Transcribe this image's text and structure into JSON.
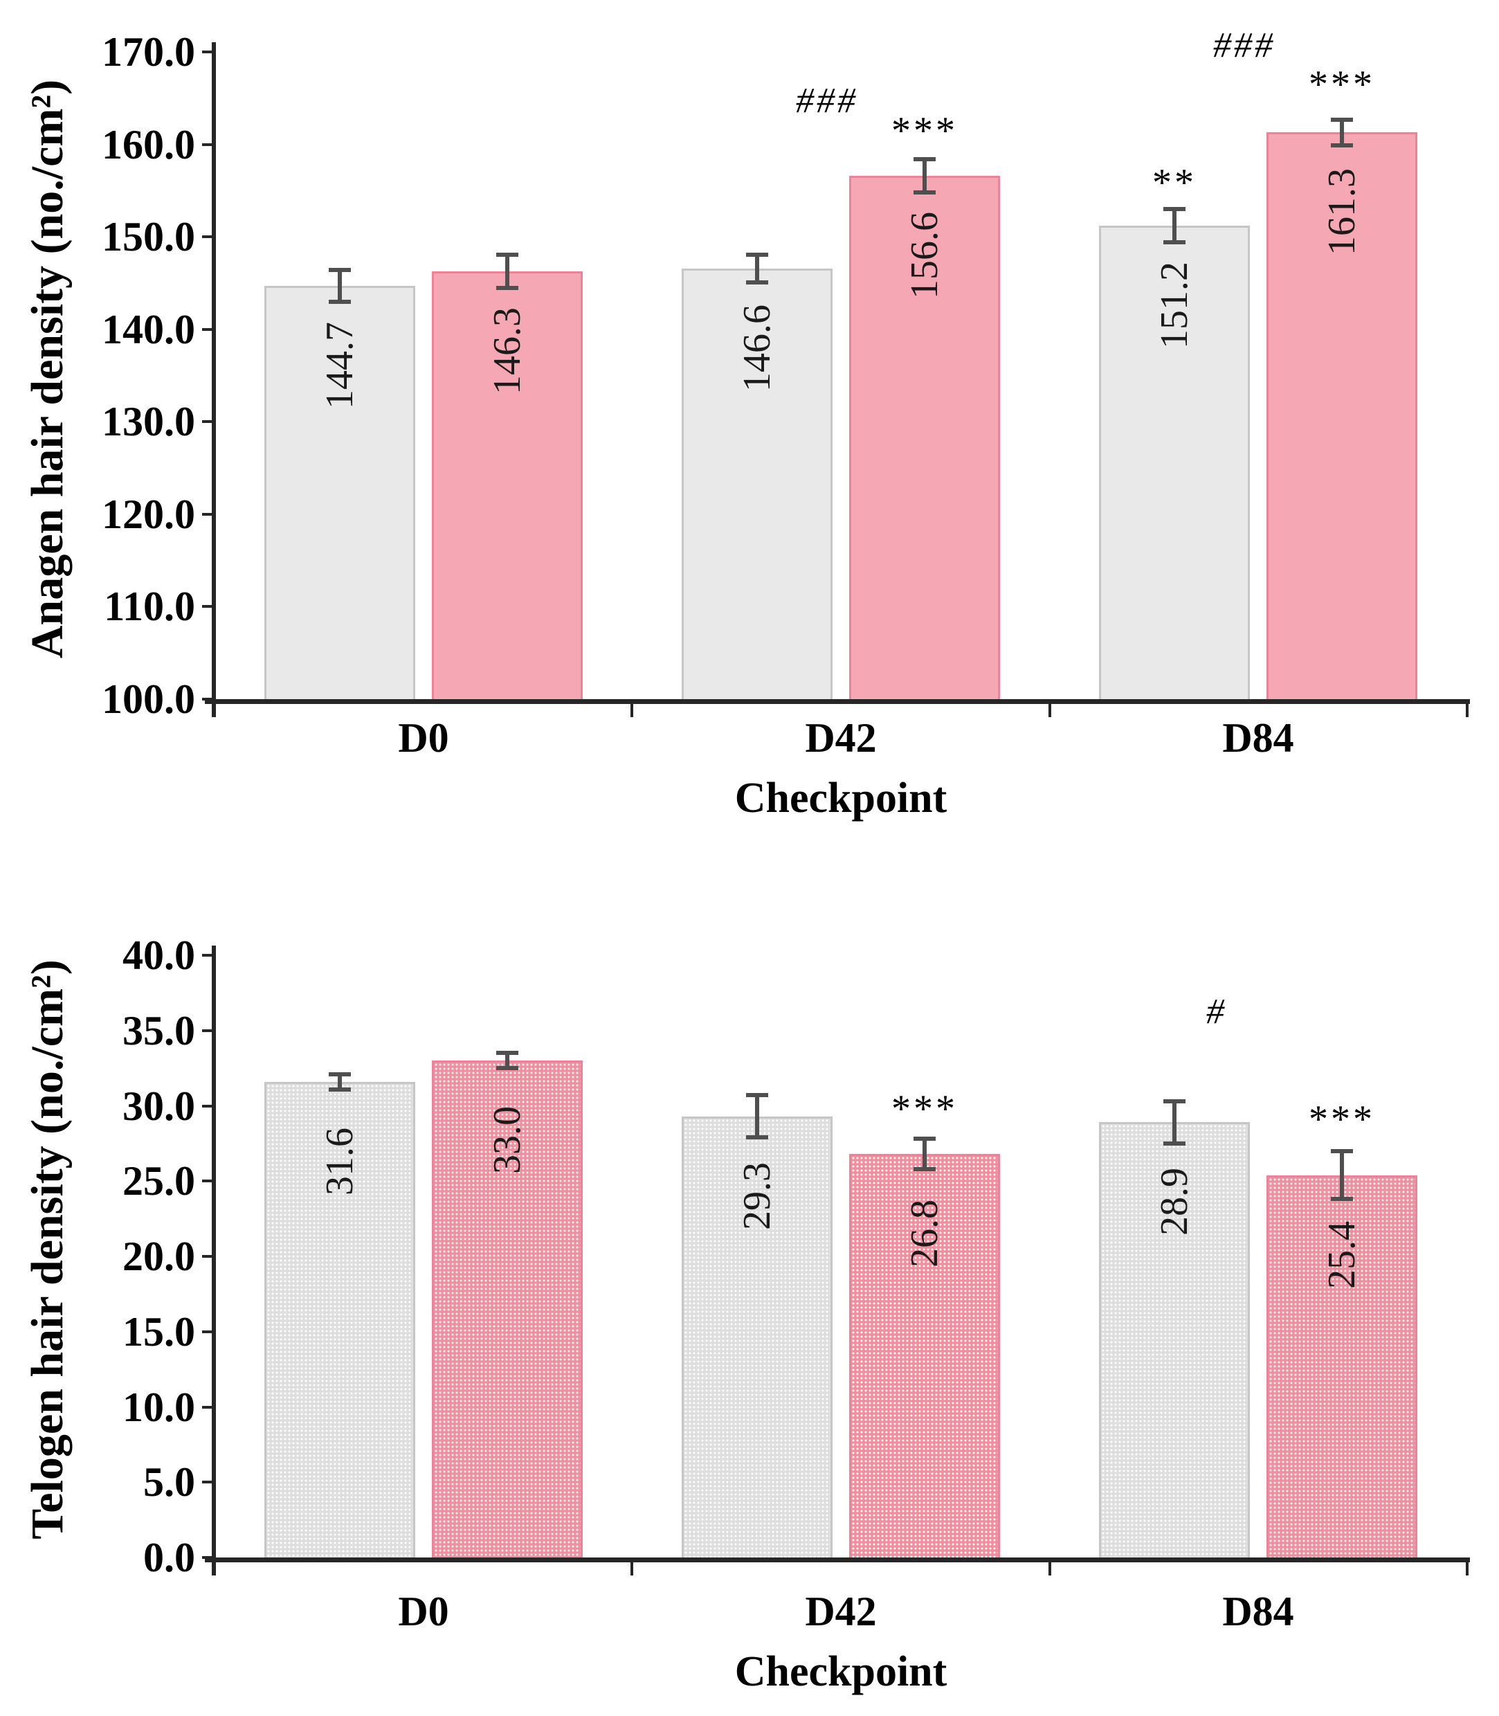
{
  "colors": {
    "axis": "#262626",
    "text": "#000000",
    "gray_fill": "#e9e9e9",
    "gray_border": "#c6c6c6",
    "gray_textured_fill": "#dedede",
    "pink_fill": "#f5a7b3",
    "pink_border": "#ec8399",
    "pink_textured_fill": "#f0909f",
    "error_bar": "#4f4f4f",
    "texture_dot": "#ffffff",
    "value_label_text": "#1a1a1a"
  },
  "chart_data": [
    {
      "type": "bar",
      "title": "",
      "ylabel": "Anagen hair density (no./cm²)",
      "xlabel": "Checkpoint",
      "ylim": [
        100.0,
        170.0
      ],
      "ytick_step": 10,
      "ytick_labels": [
        "100.0",
        "110.0",
        "120.0",
        "130.0",
        "140.0",
        "150.0",
        "160.0",
        "170.0"
      ],
      "categories": [
        "D0",
        "D42",
        "D84"
      ],
      "grid": false,
      "legend": false,
      "textured": false,
      "series": [
        {
          "key": "gray",
          "name": "gray-series",
          "values": [
            144.7,
            146.6,
            151.2
          ],
          "labels": [
            "144.7",
            "146.6",
            "151.2"
          ],
          "errors": [
            1.7,
            1.5,
            1.8
          ]
        },
        {
          "key": "pink",
          "name": "pink-series",
          "values": [
            146.3,
            156.6,
            161.3
          ],
          "labels": [
            "146.3",
            "156.6",
            "161.3"
          ],
          "errors": [
            1.8,
            1.8,
            1.4
          ]
        }
      ],
      "annotations": [
        {
          "text": "###",
          "style": "hash",
          "group": 1,
          "anchor": "center",
          "dx": -20,
          "y": 164.6
        },
        {
          "text": "***",
          "style": "star",
          "group": 1,
          "anchor": "pink",
          "dx": 0,
          "y": 161.6
        },
        {
          "text": "**",
          "style": "star",
          "group": 2,
          "anchor": "gray",
          "dx": 0,
          "y": 156.0
        },
        {
          "text": "###",
          "style": "hash",
          "group": 2,
          "anchor": "center",
          "dx": -20,
          "y": 170.6
        },
        {
          "text": "***",
          "style": "star",
          "group": 2,
          "anchor": "pink",
          "dx": 0,
          "y": 166.6
        }
      ]
    },
    {
      "type": "bar",
      "title": "",
      "ylabel": "Telogen hair density (no./cm²)",
      "xlabel": "Checkpoint",
      "ylim": [
        0.0,
        40.0
      ],
      "ytick_step": 5,
      "ytick_labels": [
        "0.0",
        "5.0",
        "10.0",
        "15.0",
        "20.0",
        "25.0",
        "30.0",
        "35.0",
        "40.0"
      ],
      "categories": [
        "D0",
        "D42",
        "D84"
      ],
      "grid": false,
      "legend": false,
      "textured": true,
      "series": [
        {
          "key": "gray",
          "name": "gray-series",
          "values": [
            31.6,
            29.3,
            28.9
          ],
          "labels": [
            "31.6",
            "29.3",
            "28.9"
          ],
          "errors": [
            0.5,
            1.4,
            1.4
          ]
        },
        {
          "key": "pink",
          "name": "pink-series",
          "values": [
            33.0,
            26.8,
            25.4
          ],
          "labels": [
            "33.0",
            "26.8",
            "25.4"
          ],
          "errors": [
            0.5,
            1.0,
            1.6
          ]
        }
      ],
      "annotations": [
        {
          "text": "***",
          "style": "star",
          "group": 1,
          "anchor": "pink",
          "dx": 0,
          "y": 29.9
        },
        {
          "text": "#",
          "style": "hash",
          "group": 2,
          "anchor": "center",
          "dx": -60,
          "y": 36.2
        },
        {
          "text": "***",
          "style": "star",
          "group": 2,
          "anchor": "pink",
          "dx": 0,
          "y": 29.2
        }
      ]
    }
  ]
}
